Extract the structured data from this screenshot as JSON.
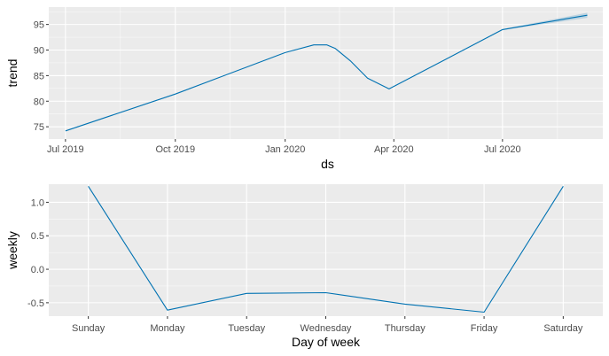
{
  "chart_data": [
    {
      "type": "line",
      "xlabel": "ds",
      "ylabel": "trend",
      "x_ticks": [
        "Jul 2019",
        "Oct 2019",
        "Jan 2020",
        "Apr 2020",
        "Jul 2020"
      ],
      "x_tick_dates": [
        "2019-07-01",
        "2019-10-01",
        "2020-01-01",
        "2020-04-01",
        "2020-07-01"
      ],
      "y_ticks": [
        75,
        80,
        85,
        90,
        95
      ],
      "xlim": [
        "2019-06-17",
        "2020-09-23"
      ],
      "ylim": [
        72.6,
        98.4
      ],
      "grid": true,
      "series": [
        {
          "x": [
            "2019-07-01",
            "2019-10-01",
            "2020-01-01",
            "2020-01-25",
            "2020-02-05",
            "2020-02-12",
            "2020-02-25",
            "2020-03-10",
            "2020-03-28",
            "2020-07-01",
            "2020-09-10"
          ],
          "y": [
            74.2,
            81.4,
            89.5,
            91.0,
            91.0,
            90.3,
            87.8,
            84.5,
            82.4,
            94.0,
            96.8
          ],
          "band_lower": [
            74.2,
            81.4,
            89.5,
            91.0,
            91.0,
            90.3,
            87.8,
            84.5,
            82.4,
            93.9,
            96.3
          ],
          "band_upper": [
            74.2,
            81.4,
            89.5,
            91.0,
            91.0,
            90.3,
            87.8,
            84.5,
            82.4,
            94.1,
            97.3
          ]
        }
      ]
    },
    {
      "type": "line",
      "xlabel": "Day of week",
      "ylabel": "weekly",
      "categories": [
        "Sunday",
        "Monday",
        "Tuesday",
        "Wednesday",
        "Thursday",
        "Friday",
        "Saturday"
      ],
      "y_ticks": [
        -0.5,
        0.0,
        0.5,
        1.0
      ],
      "y_tick_labels": [
        "-0.5",
        "0.0",
        "0.5",
        "1.0"
      ],
      "ylim": [
        -0.7,
        1.27
      ],
      "grid": true,
      "series": [
        {
          "values": [
            1.24,
            -0.61,
            -0.36,
            -0.35,
            -0.52,
            -0.64,
            1.24
          ]
        }
      ]
    }
  ],
  "colors": {
    "panel_background": "#ebebeb",
    "grid_major": "#ffffff",
    "line": "#0072B2",
    "band": "#0072B2",
    "tick_text": "#4d4d4d",
    "axis_title": "#000000"
  }
}
